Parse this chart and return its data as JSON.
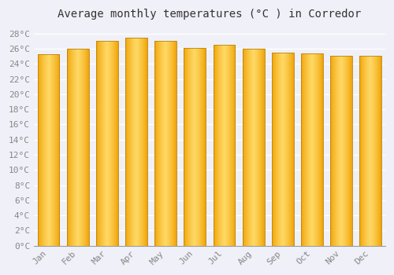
{
  "title": "Average monthly temperatures (°C ) in Corredor",
  "months": [
    "Jan",
    "Feb",
    "Mar",
    "Apr",
    "May",
    "Jun",
    "Jul",
    "Aug",
    "Sep",
    "Oct",
    "Nov",
    "Dec"
  ],
  "values": [
    25.3,
    26.0,
    27.0,
    27.5,
    27.0,
    26.1,
    26.5,
    26.0,
    25.5,
    25.4,
    25.1,
    25.1
  ],
  "bar_color_center": "#FFD966",
  "bar_color_edge": "#F0A000",
  "background_color": "#f0f0f8",
  "plot_bg_color": "#f0f0f8",
  "grid_color": "#ffffff",
  "ylim_min": 0,
  "ylim_max": 29,
  "ytick_step": 2,
  "title_fontsize": 10,
  "tick_fontsize": 8,
  "tick_color": "#888888",
  "bar_width": 0.75
}
